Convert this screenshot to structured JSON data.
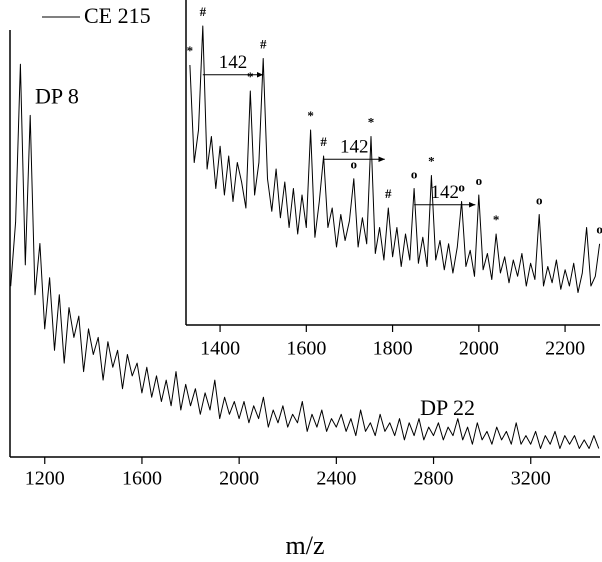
{
  "chart_data": [
    {
      "type": "line",
      "xlabel": "m/z",
      "xlim": [
        1057,
        3485
      ],
      "xticks": [
        1200,
        1600,
        2000,
        2400,
        2800,
        3200
      ],
      "ylim": [
        0,
        100
      ],
      "legend": "upper left",
      "x": [
        1060,
        1080,
        1100,
        1120,
        1140,
        1160,
        1180,
        1200,
        1220,
        1240,
        1260,
        1280,
        1300,
        1320,
        1340,
        1360,
        1380,
        1400,
        1420,
        1440,
        1460,
        1480,
        1500,
        1520,
        1540,
        1560,
        1580,
        1600,
        1620,
        1640,
        1660,
        1680,
        1700,
        1720,
        1740,
        1760,
        1780,
        1800,
        1820,
        1840,
        1860,
        1880,
        1900,
        1920,
        1940,
        1960,
        1980,
        2000,
        2020,
        2040,
        2060,
        2080,
        2100,
        2120,
        2140,
        2160,
        2180,
        2200,
        2220,
        2240,
        2260,
        2280,
        2300,
        2320,
        2340,
        2360,
        2380,
        2400,
        2420,
        2440,
        2460,
        2480,
        2500,
        2520,
        2540,
        2560,
        2580,
        2600,
        2620,
        2640,
        2660,
        2680,
        2700,
        2720,
        2740,
        2760,
        2780,
        2800,
        2820,
        2840,
        2860,
        2880,
        2900,
        2920,
        2940,
        2960,
        2980,
        3000,
        3020,
        3040,
        3060,
        3080,
        3100,
        3120,
        3140,
        3160,
        3180,
        3200,
        3220,
        3240,
        3260,
        3280,
        3300,
        3320,
        3340,
        3360,
        3380,
        3400,
        3420,
        3440,
        3460,
        3480
      ],
      "series": [
        {
          "name": "CE 215",
          "color": "#000000",
          "values": [
            40,
            55,
            92,
            45,
            80,
            38,
            50,
            30,
            42,
            25,
            38,
            22,
            35,
            28,
            33,
            20,
            30,
            24,
            28,
            18,
            27,
            21,
            25,
            16,
            24,
            19,
            22,
            15,
            21,
            14,
            19,
            13,
            18,
            12,
            20,
            11,
            17,
            12,
            16,
            10,
            15,
            11,
            18,
            9,
            14,
            10,
            13,
            9,
            13,
            8,
            12,
            9,
            14,
            7,
            11,
            8,
            12,
            7,
            10,
            8,
            13,
            6,
            10,
            7,
            11,
            6,
            9,
            7,
            10,
            6,
            9,
            5,
            11,
            6,
            8,
            5,
            10,
            6,
            8,
            5,
            9,
            4,
            8,
            5,
            9,
            4,
            7,
            5,
            8,
            4,
            7,
            5,
            9,
            4,
            7,
            3,
            8,
            4,
            6,
            3,
            7,
            4,
            6,
            3,
            8,
            3,
            5,
            3,
            6,
            2,
            5,
            3,
            6,
            2,
            5,
            3,
            5,
            2,
            4,
            2,
            5,
            2
          ]
        }
      ],
      "annotations": [
        {
          "text": "DP 8",
          "x": 1160,
          "y": 84
        },
        {
          "text": "DP 22",
          "x": 2745,
          "y": 11
        }
      ]
    },
    {
      "type": "line",
      "xlim": [
        1321,
        2281
      ],
      "xticks": [
        1400,
        1600,
        1800,
        2000,
        2200
      ],
      "ylim": [
        0,
        100
      ],
      "x": [
        1330,
        1340,
        1350,
        1360,
        1370,
        1380,
        1390,
        1400,
        1410,
        1420,
        1430,
        1440,
        1450,
        1460,
        1470,
        1480,
        1490,
        1500,
        1510,
        1520,
        1530,
        1540,
        1550,
        1560,
        1570,
        1580,
        1590,
        1600,
        1610,
        1620,
        1630,
        1640,
        1650,
        1660,
        1670,
        1680,
        1690,
        1700,
        1710,
        1720,
        1730,
        1740,
        1750,
        1760,
        1770,
        1780,
        1790,
        1800,
        1810,
        1820,
        1830,
        1840,
        1850,
        1860,
        1870,
        1880,
        1890,
        1900,
        1910,
        1920,
        1930,
        1940,
        1950,
        1960,
        1970,
        1980,
        1990,
        2000,
        2010,
        2020,
        2030,
        2040,
        2050,
        2060,
        2070,
        2080,
        2090,
        2100,
        2110,
        2120,
        2130,
        2140,
        2150,
        2160,
        2170,
        2180,
        2190,
        2200,
        2210,
        2220,
        2230,
        2240,
        2250,
        2260,
        2270,
        2280
      ],
      "series": [
        {
          "name": "CE 215",
          "color": "#000000",
          "values": [
            80,
            50,
            60,
            92,
            48,
            58,
            42,
            55,
            40,
            52,
            38,
            50,
            44,
            36,
            72,
            40,
            50,
            82,
            45,
            35,
            48,
            33,
            44,
            30,
            42,
            28,
            40,
            30,
            60,
            27,
            38,
            52,
            30,
            36,
            24,
            34,
            26,
            32,
            45,
            24,
            33,
            25,
            58,
            22,
            30,
            20,
            36,
            21,
            30,
            18,
            28,
            20,
            42,
            19,
            27,
            18,
            46,
            20,
            26,
            17,
            25,
            16,
            24,
            38,
            18,
            23,
            15,
            40,
            17,
            22,
            14,
            28,
            16,
            21,
            13,
            20,
            15,
            22,
            12,
            19,
            14,
            34,
            12,
            18,
            13,
            20,
            11,
            17,
            12,
            19,
            10,
            16,
            30,
            12,
            15,
            25
          ]
        }
      ],
      "annotations": [
        {
          "text": "*",
          "x": 1330,
          "y": 84
        },
        {
          "text": "#",
          "x": 1360,
          "y": 96
        },
        {
          "text": "*",
          "x": 1470,
          "y": 76
        },
        {
          "text": "#",
          "x": 1500,
          "y": 86
        },
        {
          "text": "*",
          "x": 1610,
          "y": 64
        },
        {
          "text": "#",
          "x": 1640,
          "y": 56
        },
        {
          "text": "o",
          "x": 1710,
          "y": 49
        },
        {
          "text": "*",
          "x": 1750,
          "y": 62
        },
        {
          "text": "#",
          "x": 1790,
          "y": 40
        },
        {
          "text": "o",
          "x": 1850,
          "y": 46
        },
        {
          "text": "*",
          "x": 1890,
          "y": 50
        },
        {
          "text": "o",
          "x": 1960,
          "y": 42
        },
        {
          "text": "o",
          "x": 2000,
          "y": 44
        },
        {
          "text": "*",
          "x": 2040,
          "y": 32
        },
        {
          "text": "o",
          "x": 2140,
          "y": 38
        },
        {
          "text": "o",
          "x": 2280,
          "y": 29
        }
      ],
      "spans": [
        {
          "text": "142",
          "x1": 1360,
          "x2": 1500,
          "y": 77
        },
        {
          "text": "142",
          "x1": 1640,
          "x2": 1782,
          "y": 51
        },
        {
          "text": "142",
          "x1": 1850,
          "x2": 1992,
          "y": 37
        }
      ]
    }
  ]
}
